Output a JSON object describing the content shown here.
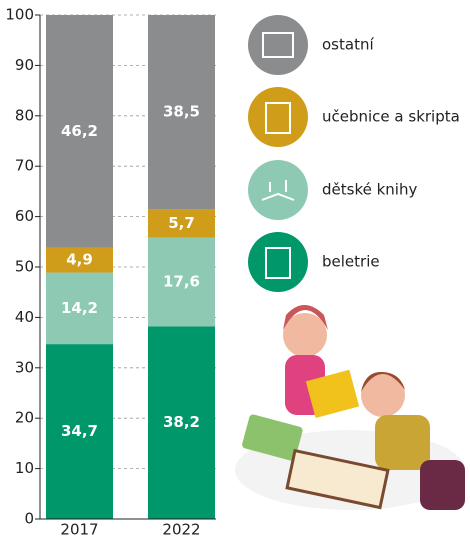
{
  "chart_data": {
    "type": "stacked-bar",
    "categories": [
      "2017",
      "2022"
    ],
    "series": [
      {
        "name": "beletrie",
        "color": "#00976b",
        "values": [
          34.7,
          38.2
        ],
        "value_labels": [
          "34,7",
          "38,2"
        ]
      },
      {
        "name": "dětské knihy",
        "color": "#8ecab3",
        "values": [
          14.2,
          17.6
        ],
        "value_labels": [
          "14,2",
          "17,6"
        ]
      },
      {
        "name": "učebnice a skripta",
        "color": "#d09d1b",
        "values": [
          4.9,
          5.7
        ],
        "value_labels": [
          "4,9",
          "5,7"
        ]
      },
      {
        "name": "ostatní",
        "color": "#8b8c8e",
        "values": [
          46.2,
          38.5
        ],
        "value_labels": [
          "46,2",
          "38,5"
        ]
      }
    ],
    "ylim": [
      0,
      100
    ],
    "yticks": [
      0,
      10,
      20,
      30,
      40,
      50,
      60,
      70,
      80,
      90,
      100
    ],
    "grid": true
  }
}
